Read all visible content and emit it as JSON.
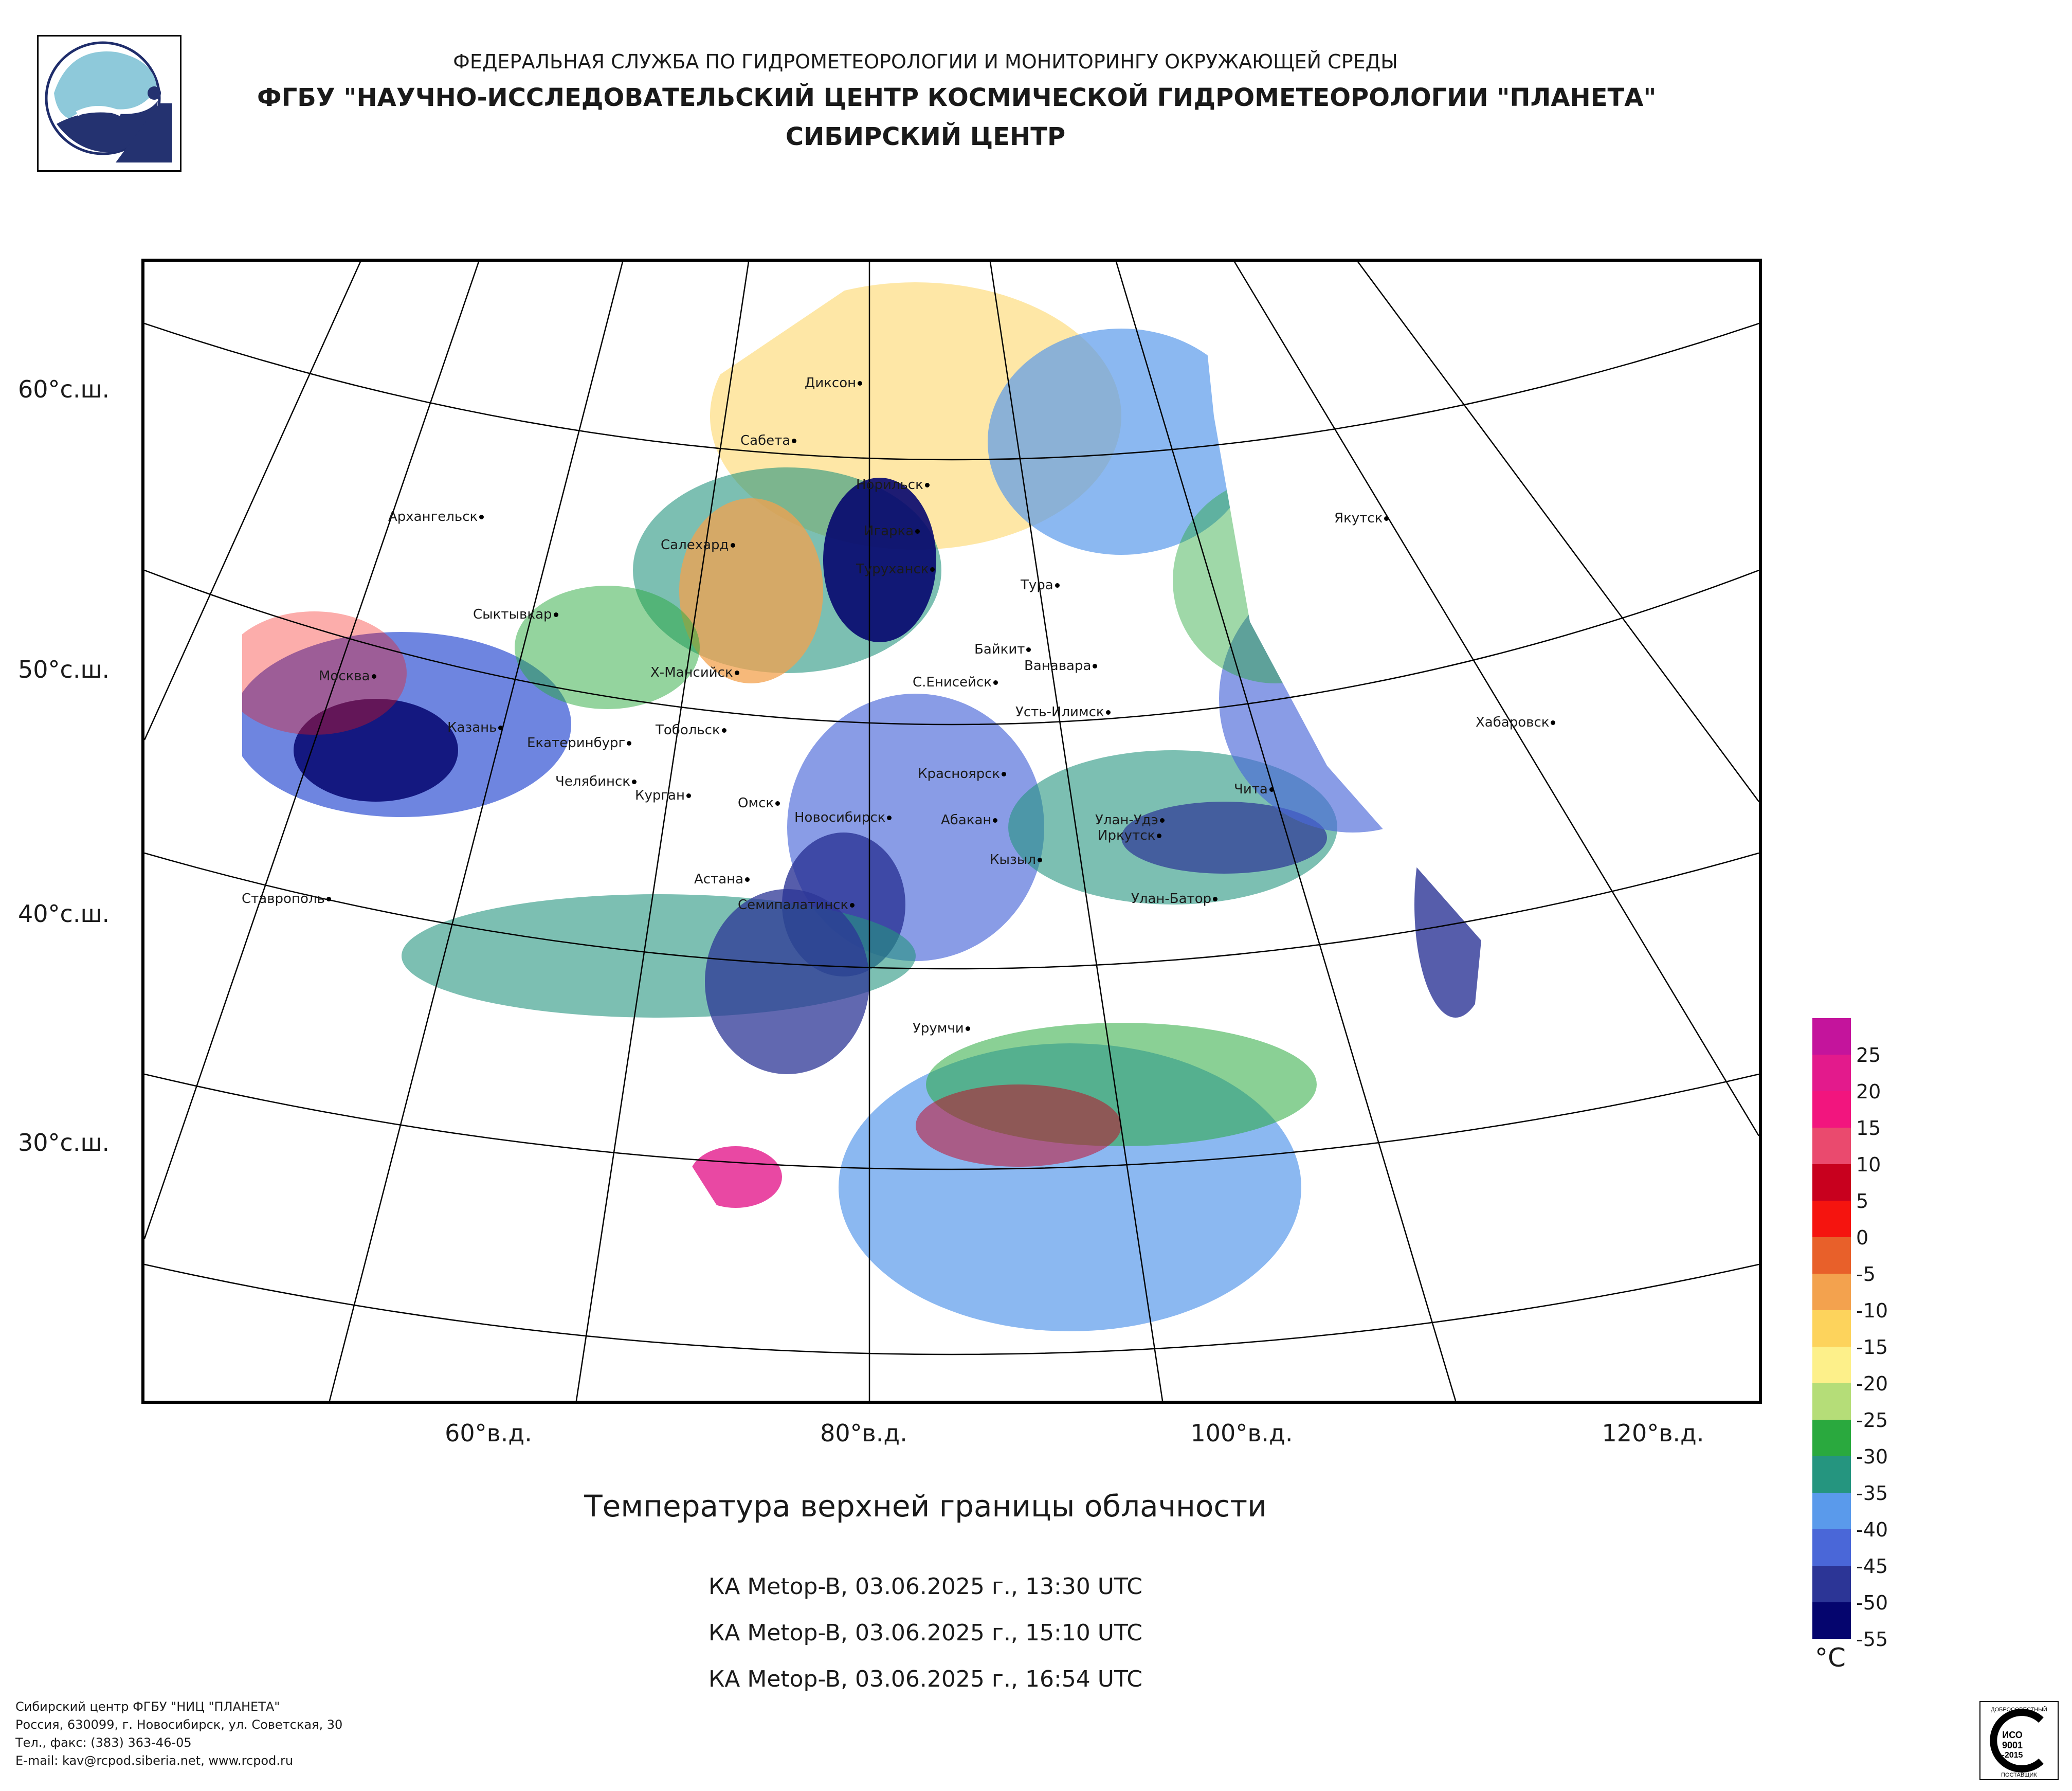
{
  "header": {
    "line1": "ФЕДЕРАЛЬНАЯ СЛУЖБА ПО ГИДРОМЕТЕОРОЛОГИИ И МОНИТОРИНГУ ОКРУЖАЮЩЕЙ СРЕДЫ",
    "line2": "ФГБУ \"НАУЧНО-ИССЛЕДОВАТЕЛЬСКИЙ ЦЕНТР КОСМИЧЕСКОЙ ГИДРОМЕТЕОРОЛОГИИ \"ПЛАНЕТА\"",
    "line3": "СИБИРСКИЙ ЦЕНТР"
  },
  "map": {
    "lat_labels": [
      "60°с.ш.",
      "50°с.ш.",
      "40°с.ш.",
      "30°с.ш."
    ],
    "lon_labels": [
      "60°в.д.",
      "80°в.д.",
      "100°в.д.",
      "120°в.д."
    ],
    "cities": [
      "Диксон",
      "Сабета",
      "Норильск",
      "Архангельск",
      "Салехард",
      "Игарка",
      "Туруханск",
      "Тура",
      "Якутск",
      "Сыктывкар",
      "Байкит",
      "Ванавара",
      "Х-Мансийск",
      "С.Енисейск",
      "Москва",
      "Усть-Илимск",
      "Хабаровск",
      "Казань",
      "Тобольск",
      "Екатеринбург",
      "Челябинск",
      "Курган",
      "Красноярск",
      "Чита",
      "Омск",
      "Новосибирск",
      "Абакан",
      "Улан-Удэ",
      "Иркутск",
      "Кызыл",
      "Астана",
      "Ставрополь",
      "Семипалатинск",
      "Улан-Батор",
      "Урумчи"
    ]
  },
  "title": "Температура верхней границы облачности",
  "satellites": [
    "КА Metop-B, 03.06.2025 г., 13:30 UTC",
    "КА Metop-B, 03.06.2025 г., 15:10 UTC",
    "КА Metop-B, 03.06.2025 г., 16:54 UTC"
  ],
  "scale": {
    "unit": "°C",
    "labels": [
      "25",
      "20",
      "15",
      "10",
      "5",
      "0",
      "-5",
      "-10",
      "-15",
      "-20",
      "-25",
      "-30",
      "-35",
      "-40",
      "-45",
      "-50",
      "-55"
    ],
    "colors": [
      "#c4149c",
      "#e31a8c",
      "#f2157e",
      "#ea4a6e",
      "#c8001e",
      "#f5140f",
      "#e8602a",
      "#f3a24e",
      "#fdd35c",
      "#fdf08a",
      "#b5dd78",
      "#2aa93e",
      "#25957f",
      "#5a9aeb",
      "#4a67d8",
      "#2c3596",
      "#05056e"
    ]
  },
  "footer": [
    "Сибирский центр ФГБУ \"НИЦ \"ПЛАНЕТА\"",
    "Россия, 630099, г. Новосибирск, ул. Советская, 30",
    "Тел., факс: (383) 363-46-05",
    "E-mail: kav@rcpod.siberia.net, www.rcpod.ru"
  ],
  "iso_badge": {
    "top": "ДОБРОСОВЕСТНЫЙ",
    "l1": "ИСО",
    "l2": "9001",
    "l3": "-2015",
    "bottom": "ПОСТАВЩИК"
  }
}
